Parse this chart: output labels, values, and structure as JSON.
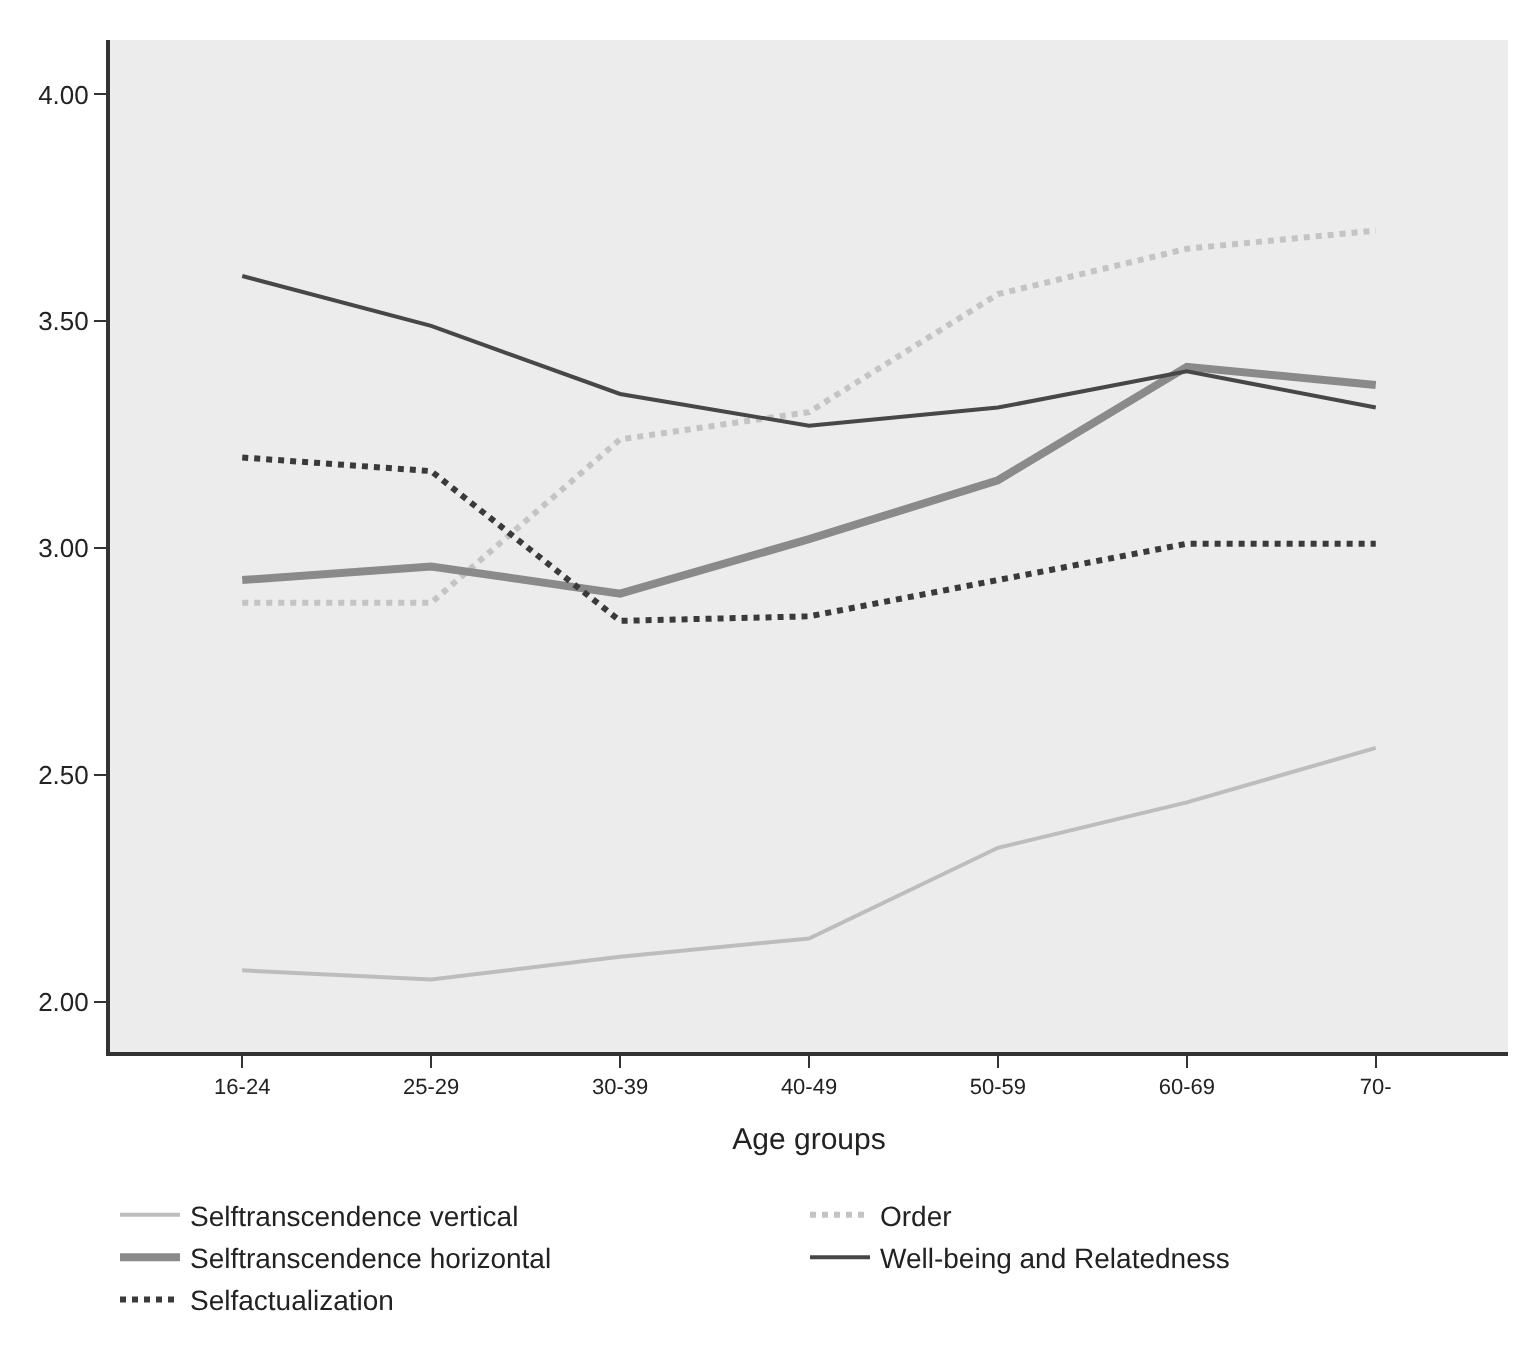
{
  "chart_data": {
    "type": "line",
    "xlabel": "Age groups",
    "categories": [
      "16-24",
      "25-29",
      "30-39",
      "40-49",
      "50-59",
      "60-69",
      "70-"
    ],
    "series": [
      {
        "name": "Selftranscendence vertical",
        "color": "#bdbdbd",
        "line_style": "solid",
        "values": [
          2.07,
          2.05,
          2.1,
          2.14,
          2.34,
          2.44,
          2.56
        ]
      },
      {
        "name": "Order",
        "color": "#c4c4c4",
        "line_style": "dotted",
        "values": [
          2.88,
          2.88,
          3.24,
          3.3,
          3.56,
          3.66,
          3.7
        ]
      },
      {
        "name": "Selftranscendence horizontal",
        "color": "#8a8a8a",
        "line_style": "solid",
        "values": [
          2.93,
          2.96,
          2.9,
          3.02,
          3.15,
          3.4,
          3.36
        ]
      },
      {
        "name": "Well-being and Relatedness",
        "color": "#474747",
        "line_style": "solid",
        "values": [
          3.6,
          3.49,
          3.34,
          3.27,
          3.31,
          3.39,
          3.31
        ]
      },
      {
        "name": "Selfactualization",
        "color": "#3a3a3a",
        "line_style": "dotted",
        "values": [
          3.2,
          3.17,
          2.84,
          2.85,
          2.93,
          3.01,
          3.01
        ]
      }
    ],
    "ylim": [
      1.89,
      4.12
    ],
    "yticks": [
      {
        "value": 2,
        "label": "2.00"
      },
      {
        "value": 2.5,
        "label": "2.50"
      },
      {
        "value": 3,
        "label": "3.00"
      },
      {
        "value": 3.5,
        "label": "3.50"
      },
      {
        "value": 4,
        "label": "4.00"
      }
    ],
    "grid": false,
    "legend": "bottom",
    "marker": "none"
  }
}
